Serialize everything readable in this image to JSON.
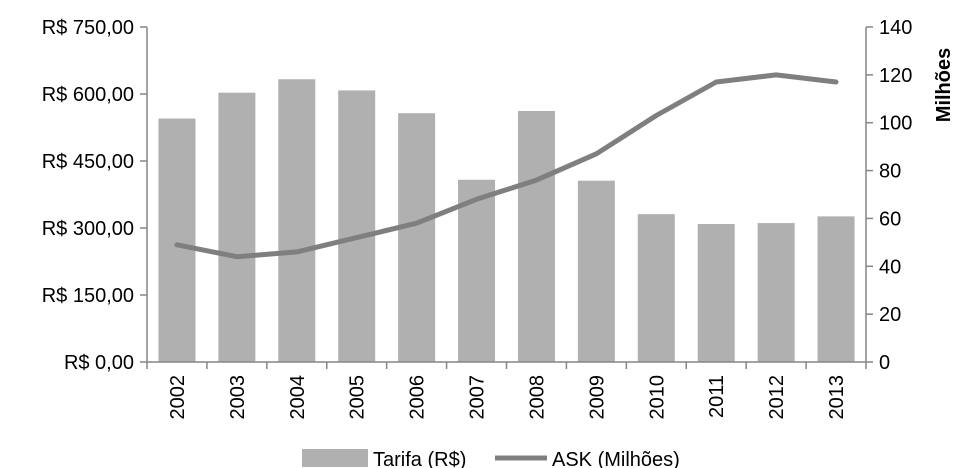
{
  "chart_data": {
    "type": "bar",
    "categories": [
      "2002",
      "2003",
      "2004",
      "2005",
      "2006",
      "2007",
      "2008",
      "2009",
      "2010",
      "2011",
      "2012",
      "2013"
    ],
    "series": [
      {
        "name": "Tarifa (R$)",
        "type": "bar",
        "axis": "left",
        "color": "#b0b0b0",
        "values": [
          545,
          603,
          633,
          608,
          557,
          408,
          562,
          406,
          331,
          309,
          311,
          326
        ]
      },
      {
        "name": "ASK (Milhões)",
        "type": "line",
        "axis": "right",
        "color": "#7f7f7f",
        "values": [
          49,
          44,
          46,
          52,
          58,
          68,
          76,
          87,
          103,
          117,
          120,
          117
        ]
      }
    ],
    "y_left": {
      "min": 0,
      "max": 750,
      "ticks": [
        0,
        150,
        300,
        450,
        600,
        750
      ],
      "tick_labels": [
        "R$ 0,00",
        "R$ 150,00",
        "R$ 300,00",
        "R$ 450,00",
        "R$ 600,00",
        "R$ 750,00"
      ],
      "label": ""
    },
    "y_right": {
      "min": 0,
      "max": 140,
      "ticks": [
        0,
        20,
        40,
        60,
        80,
        100,
        120,
        140
      ],
      "tick_labels": [
        "0",
        "20",
        "40",
        "60",
        "80",
        "100",
        "120",
        "140"
      ],
      "label": "Milhões"
    },
    "xlabel": "",
    "grid": false,
    "legend_position": "bottom"
  }
}
